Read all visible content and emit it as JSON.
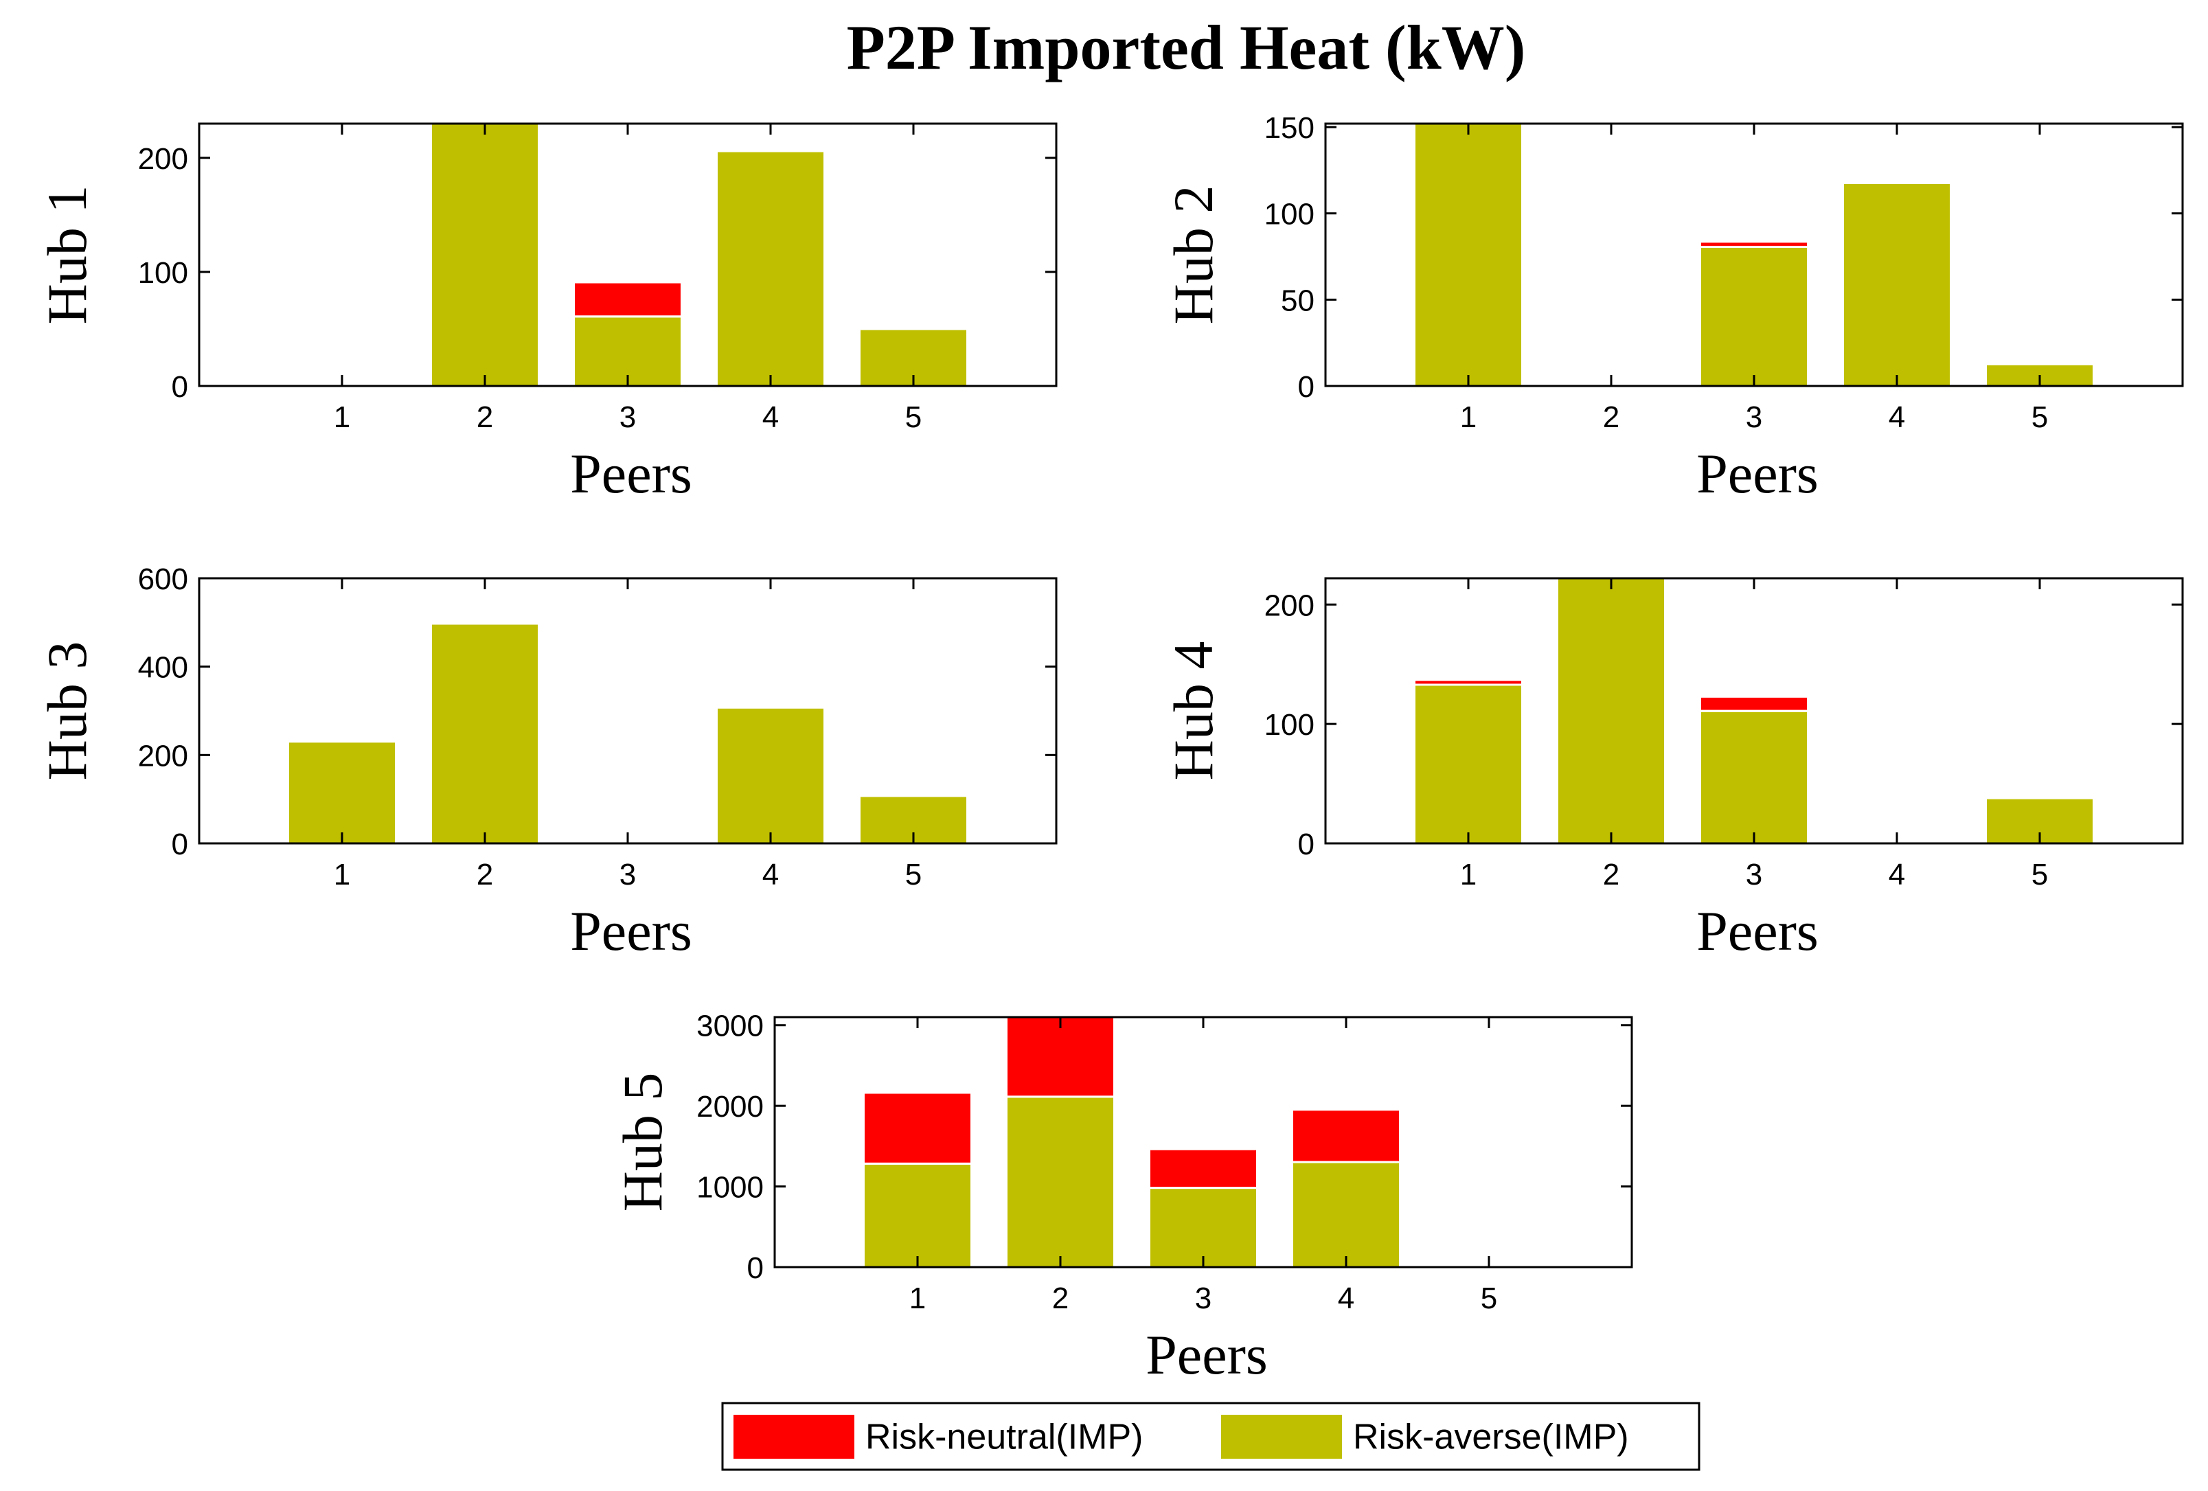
{
  "figure": {
    "title": "P2P Imported Heat (kW)"
  },
  "colors": {
    "risk_neutral": "#ff0000",
    "risk_averse": "#bfbf00",
    "axis": "#000000",
    "background": "#ffffff"
  },
  "chart_data": [
    {
      "type": "bar",
      "stacked": true,
      "title": "",
      "ylabel": "Hub 1",
      "xlabel": "Peers",
      "categories": [
        "1",
        "2",
        "3",
        "4",
        "5"
      ],
      "ylim": [
        0,
        230
      ],
      "yticks": [
        0,
        100,
        200
      ],
      "series": [
        {
          "name": "Risk-averse(IMP)",
          "values": [
            0,
            230,
            60,
            205,
            49
          ]
        },
        {
          "name": "Risk-neutral(IMP)",
          "values": [
            0,
            0,
            30,
            0,
            0
          ]
        }
      ]
    },
    {
      "type": "bar",
      "stacked": true,
      "title": "",
      "ylabel": "Hub 2",
      "xlabel": "Peers",
      "categories": [
        "1",
        "2",
        "3",
        "4",
        "5"
      ],
      "ylim": [
        0,
        152
      ],
      "yticks": [
        0,
        50,
        100,
        150
      ],
      "series": [
        {
          "name": "Risk-averse(IMP)",
          "values": [
            152,
            0,
            80,
            117,
            12
          ]
        },
        {
          "name": "Risk-neutral(IMP)",
          "values": [
            0,
            0,
            3,
            0,
            0
          ]
        }
      ]
    },
    {
      "type": "bar",
      "stacked": true,
      "title": "",
      "ylabel": "Hub 3",
      "xlabel": "Peers",
      "categories": [
        "1",
        "2",
        "3",
        "4",
        "5"
      ],
      "ylim": [
        0,
        600
      ],
      "yticks": [
        0,
        200,
        400,
        600
      ],
      "series": [
        {
          "name": "Risk-averse(IMP)",
          "values": [
            228,
            495,
            0,
            305,
            105
          ]
        },
        {
          "name": "Risk-neutral(IMP)",
          "values": [
            0,
            0,
            0,
            0,
            0
          ]
        }
      ]
    },
    {
      "type": "bar",
      "stacked": true,
      "title": "",
      "ylabel": "Hub 4",
      "xlabel": "Peers",
      "categories": [
        "1",
        "2",
        "3",
        "4",
        "5"
      ],
      "ylim": [
        0,
        222
      ],
      "yticks": [
        0,
        100,
        200
      ],
      "series": [
        {
          "name": "Risk-averse(IMP)",
          "values": [
            132,
            222,
            110,
            0,
            37
          ]
        },
        {
          "name": "Risk-neutral(IMP)",
          "values": [
            4,
            0,
            12,
            0,
            0
          ]
        }
      ]
    },
    {
      "type": "bar",
      "stacked": true,
      "title": "",
      "ylabel": "Hub 5",
      "xlabel": "Peers",
      "categories": [
        "1",
        "2",
        "3",
        "4",
        "5"
      ],
      "ylim": [
        0,
        3100
      ],
      "yticks": [
        0,
        1000,
        2000,
        3000
      ],
      "series": [
        {
          "name": "Risk-averse(IMP)",
          "values": [
            1270,
            2100,
            970,
            1290,
            0
          ]
        },
        {
          "name": "Risk-neutral(IMP)",
          "values": [
            880,
            1000,
            480,
            650,
            0
          ]
        }
      ]
    }
  ],
  "legend": {
    "items": [
      {
        "label": "Risk-neutral(IMP)",
        "color": "#ff0000"
      },
      {
        "label": "Risk-averse(IMP)",
        "color": "#bfbf00"
      }
    ]
  }
}
